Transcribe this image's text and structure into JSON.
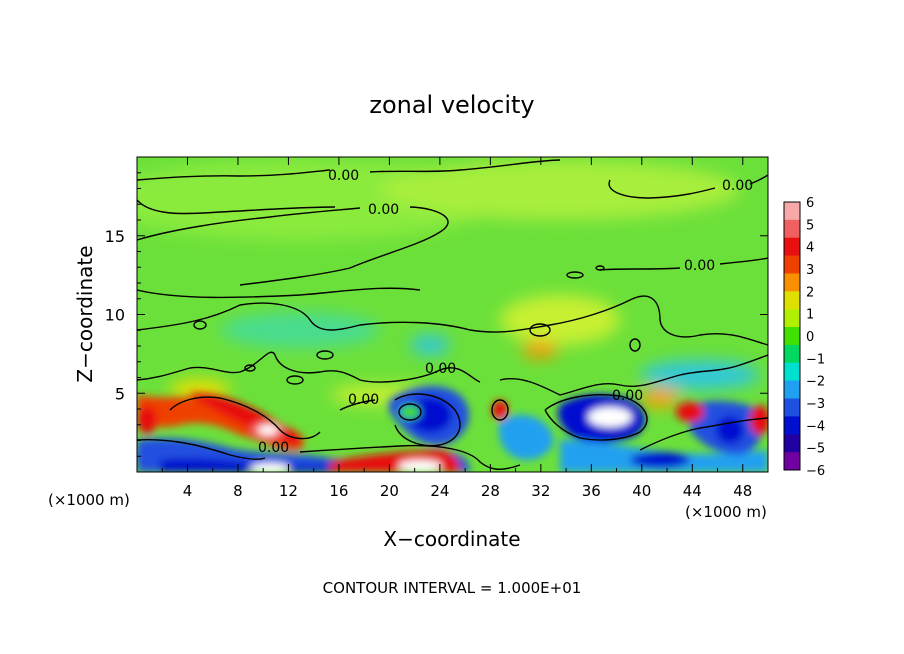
{
  "chart_data": {
    "type": "heatmap",
    "title": "zonal velocity",
    "xlabel": "X−coordinate",
    "ylabel": "Z−coordinate",
    "x_unit_left": "(×1000 m)",
    "x_unit_right": "(×1000 m)",
    "xlim": [
      0,
      50
    ],
    "ylim": [
      0,
      20
    ],
    "xticks": [
      "4",
      "8",
      "12",
      "16",
      "20",
      "24",
      "28",
      "32",
      "36",
      "40",
      "44",
      "48"
    ],
    "yticks": [
      "5",
      "10",
      "15"
    ],
    "contour_labels": [
      "0.00",
      "0.00",
      "0.00",
      "0.00",
      "0.00",
      "0.00",
      "0.00",
      "0.00"
    ],
    "footer": "CONTOUR INTERVAL = 1.000E+01",
    "colorbar": {
      "ticks": [
        "6",
        "5",
        "4",
        "3",
        "2",
        "1",
        "0",
        "−1",
        "−2",
        "−3",
        "−4",
        "−5",
        "−6"
      ],
      "colors": [
        "#f7a8a8",
        "#f06060",
        "#e81010",
        "#f04000",
        "#f89000",
        "#e0e000",
        "#b0f000",
        "#40e000",
        "#00d860",
        "#00e0d0",
        "#20a0f0",
        "#2050e0",
        "#0010d0",
        "#2000a0",
        "#7000a0"
      ]
    },
    "features": [
      {
        "x": 10.5,
        "z": 3.0,
        "value": 6,
        "sign": "positive"
      },
      {
        "x": 6.0,
        "z": 4.0,
        "value": 4,
        "sign": "positive"
      },
      {
        "x": 25.0,
        "z": 0.5,
        "value": 5,
        "sign": "positive"
      },
      {
        "x": 38.0,
        "z": 3.5,
        "value": -6,
        "sign": "negative"
      },
      {
        "x": 24.0,
        "z": 4.0,
        "value": -5,
        "sign": "negative"
      },
      {
        "x": 10.0,
        "z": 0.5,
        "value": -6,
        "sign": "negative"
      },
      {
        "x": 47.5,
        "z": 2.5,
        "value": -4,
        "sign": "negative"
      },
      {
        "x": 44.0,
        "z": 4.0,
        "value": 3,
        "sign": "positive"
      }
    ]
  }
}
